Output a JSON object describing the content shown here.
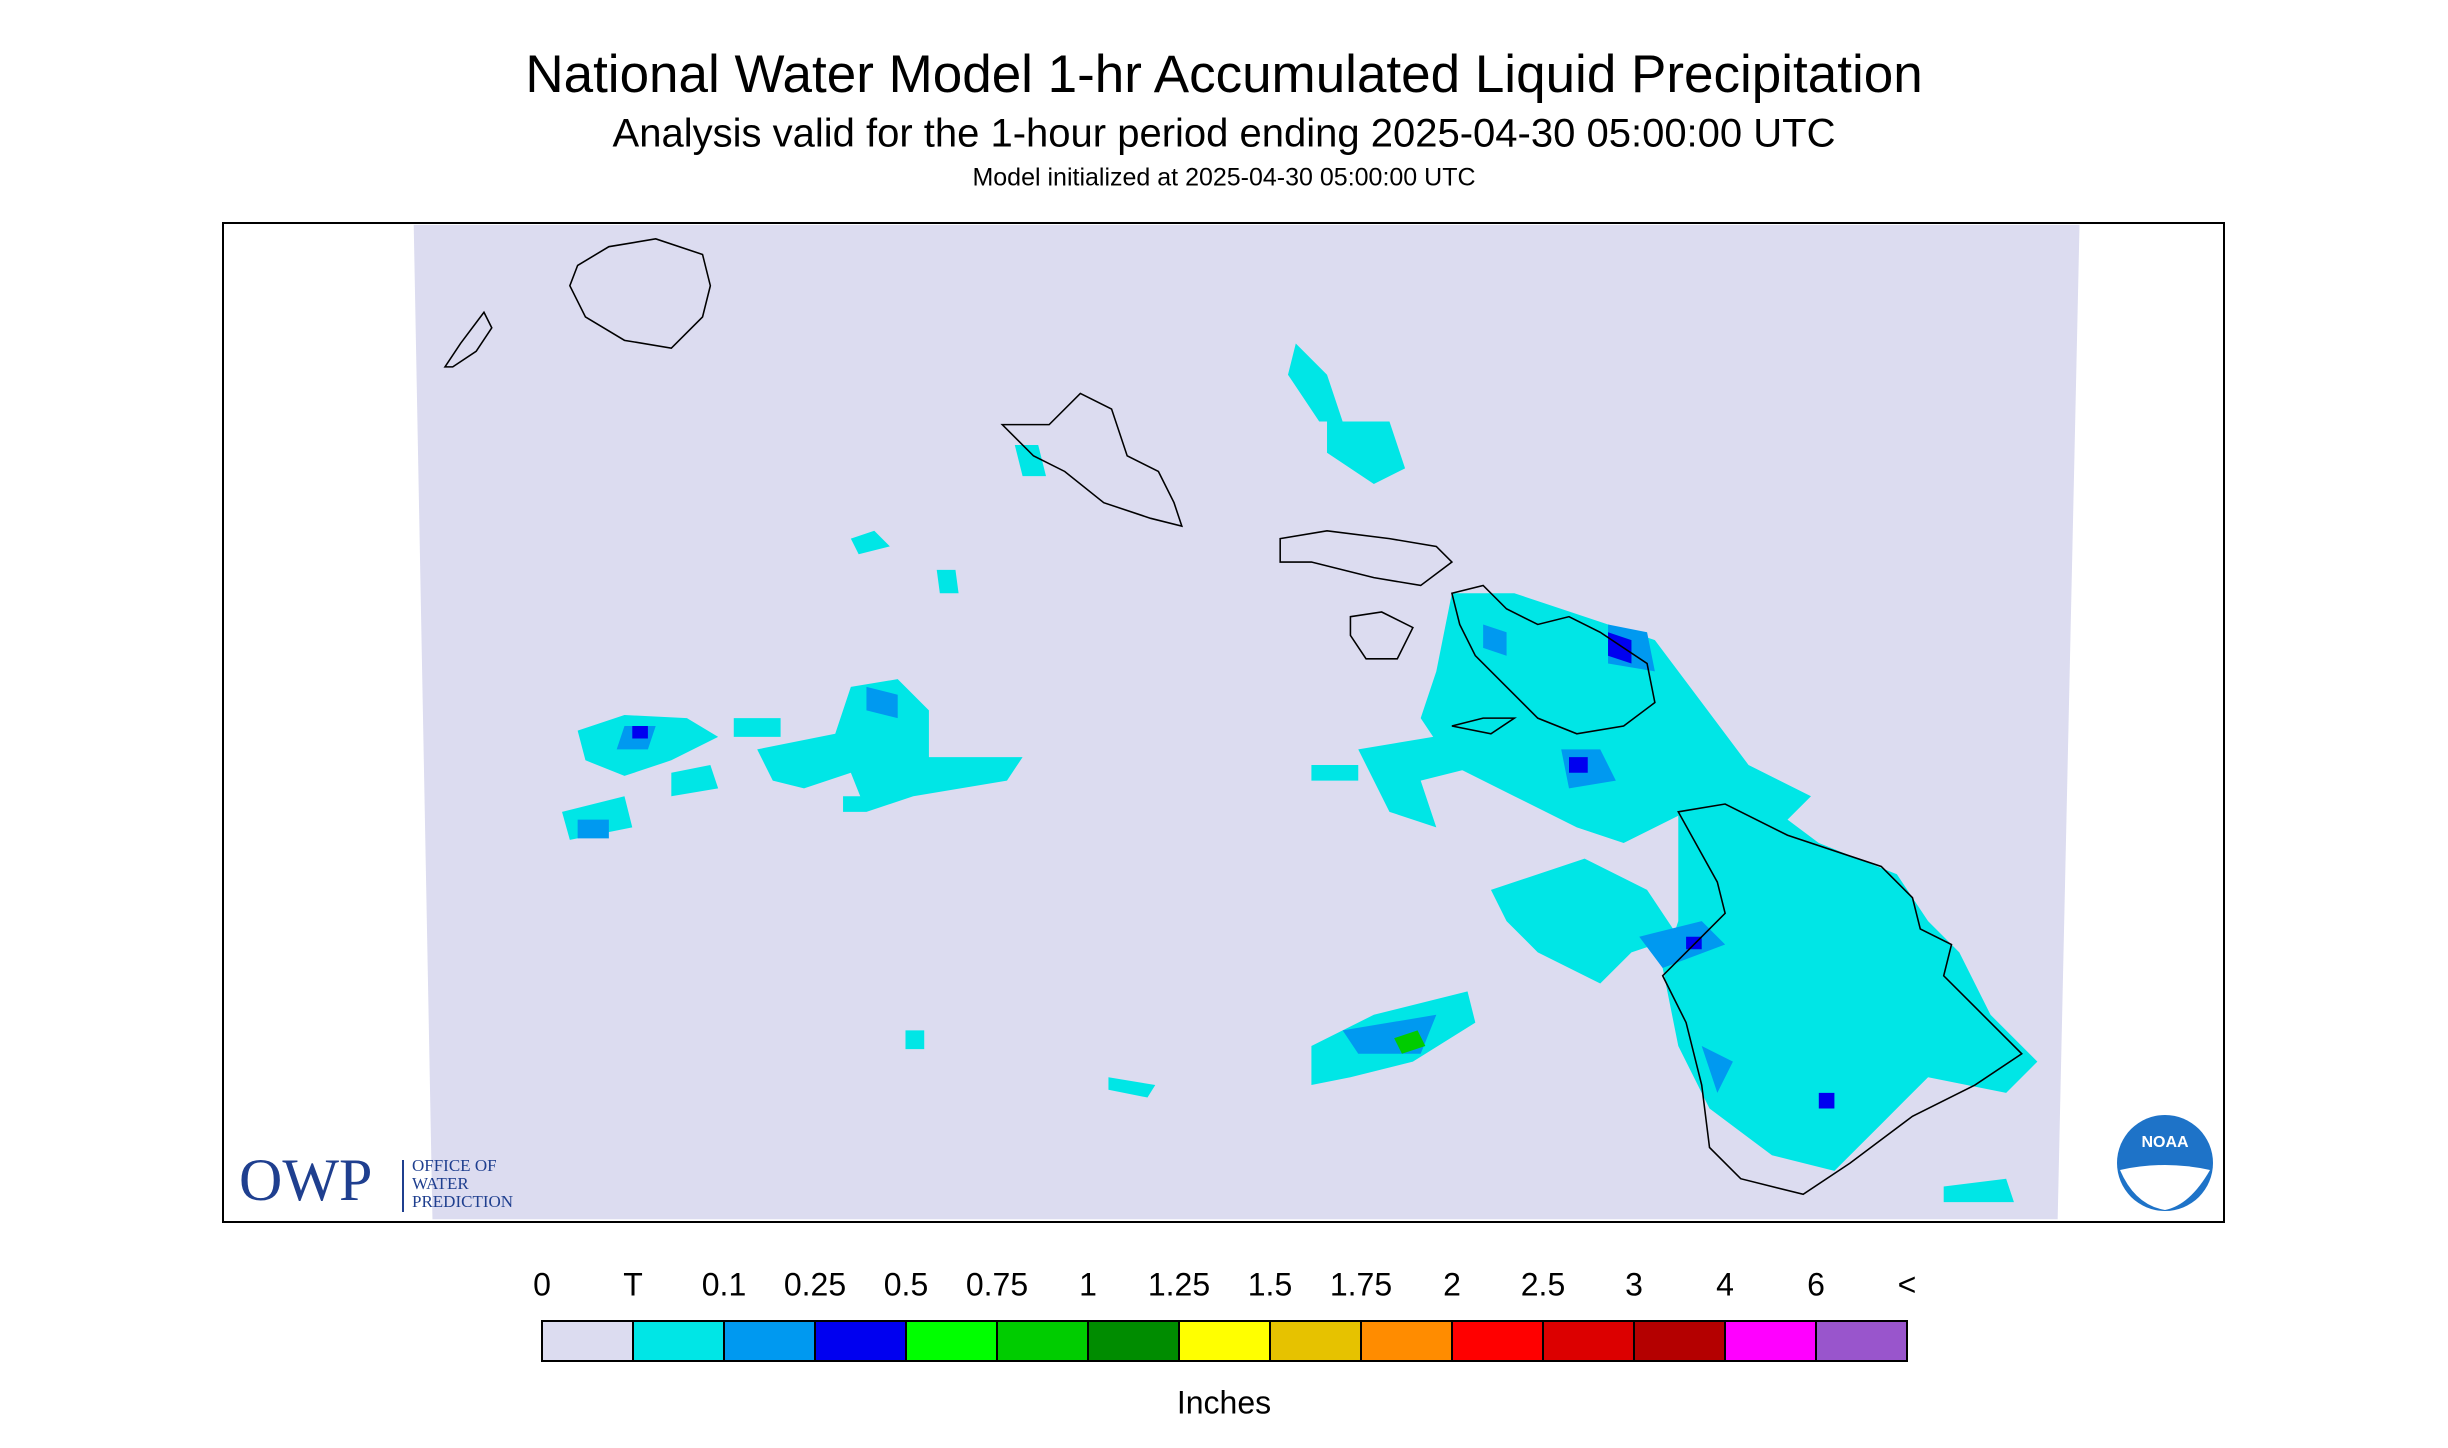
{
  "header": {
    "title": "National Water Model 1-hr Accumulated Liquid Precipitation",
    "subtitle": "Analysis valid for the 1-hour period ending 2025-04-30 05:00:00 UTC",
    "initialized": "Model initialized at 2025-04-30 05:00:00 UTC"
  },
  "legend": {
    "labels": [
      "0",
      "T",
      "0.1",
      "0.25",
      "0.5",
      "0.75",
      "1",
      "1.25",
      "1.5",
      "1.75",
      "2",
      "2.5",
      "3",
      "4",
      "6",
      "<"
    ],
    "colors": [
      "#dcdcf0",
      "#00e6e6",
      "#0099f0",
      "#0000f0",
      "#00ff00",
      "#00cc00",
      "#008c00",
      "#ffff00",
      "#e6c200",
      "#ff8c00",
      "#ff0000",
      "#dc0000",
      "#b40000",
      "#ff00ff",
      "#9955cc"
    ],
    "units": "Inches"
  },
  "logos": {
    "owp": {
      "letters": "OWP",
      "name": [
        "OFFICE OF",
        "WATER",
        "PREDICTION"
      ]
    },
    "noaa": "NOAA"
  }
}
